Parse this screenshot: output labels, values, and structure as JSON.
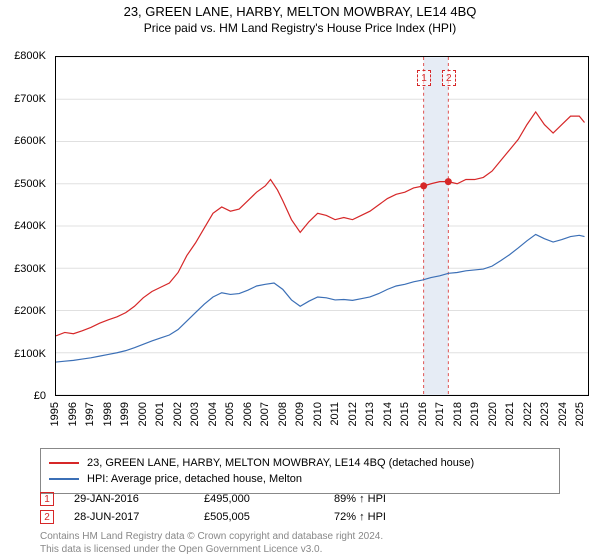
{
  "title": "23, GREEN LANE, HARBY, MELTON MOWBRAY, LE14 4BQ",
  "subtitle": "Price paid vs. HM Land Registry's House Price Index (HPI)",
  "chart": {
    "type": "line",
    "background_color": "#ffffff",
    "grid_color": "#e0e0e0",
    "axis_color": "#000000",
    "marker_band_color": "#e6ecf5",
    "ylim": [
      0,
      800000
    ],
    "ytick_step": 100000,
    "yticks": [
      "£0",
      "£100K",
      "£200K",
      "£300K",
      "£400K",
      "£500K",
      "£600K",
      "£700K",
      "£800K"
    ],
    "xlim": [
      1995,
      2025.5
    ],
    "xticks": [
      1995,
      1996,
      1997,
      1998,
      1999,
      2000,
      2001,
      2002,
      2003,
      2004,
      2005,
      2006,
      2007,
      2008,
      2009,
      2010,
      2011,
      2012,
      2013,
      2014,
      2015,
      2016,
      2017,
      2018,
      2019,
      2020,
      2021,
      2022,
      2023,
      2024,
      2025
    ],
    "label_fontsize": 11,
    "title_fontsize": 13,
    "line_width": 1.2,
    "series": [
      {
        "name": "property",
        "label": "23, GREEN LANE, HARBY, MELTON MOWBRAY, LE14 4BQ (detached house)",
        "color": "#d62728",
        "data": [
          [
            1995.0,
            140000
          ],
          [
            1995.5,
            148000
          ],
          [
            1996.0,
            145000
          ],
          [
            1996.5,
            152000
          ],
          [
            1997.0,
            160000
          ],
          [
            1997.5,
            170000
          ],
          [
            1998.0,
            178000
          ],
          [
            1998.5,
            185000
          ],
          [
            1999.0,
            195000
          ],
          [
            1999.5,
            210000
          ],
          [
            2000.0,
            230000
          ],
          [
            2000.5,
            245000
          ],
          [
            2001.0,
            255000
          ],
          [
            2001.5,
            265000
          ],
          [
            2002.0,
            290000
          ],
          [
            2002.5,
            330000
          ],
          [
            2003.0,
            360000
          ],
          [
            2003.5,
            395000
          ],
          [
            2004.0,
            430000
          ],
          [
            2004.5,
            445000
          ],
          [
            2005.0,
            435000
          ],
          [
            2005.5,
            440000
          ],
          [
            2006.0,
            460000
          ],
          [
            2006.5,
            480000
          ],
          [
            2007.0,
            495000
          ],
          [
            2007.3,
            510000
          ],
          [
            2007.7,
            485000
          ],
          [
            2008.0,
            460000
          ],
          [
            2008.5,
            415000
          ],
          [
            2009.0,
            385000
          ],
          [
            2009.5,
            410000
          ],
          [
            2010.0,
            430000
          ],
          [
            2010.5,
            425000
          ],
          [
            2011.0,
            415000
          ],
          [
            2011.5,
            420000
          ],
          [
            2012.0,
            415000
          ],
          [
            2012.5,
            425000
          ],
          [
            2013.0,
            435000
          ],
          [
            2013.5,
            450000
          ],
          [
            2014.0,
            465000
          ],
          [
            2014.5,
            475000
          ],
          [
            2015.0,
            480000
          ],
          [
            2015.5,
            490000
          ],
          [
            2016.08,
            495000
          ],
          [
            2016.5,
            500000
          ],
          [
            2017.0,
            505000
          ],
          [
            2017.49,
            505000
          ],
          [
            2018.0,
            500000
          ],
          [
            2018.5,
            510000
          ],
          [
            2019.0,
            510000
          ],
          [
            2019.5,
            515000
          ],
          [
            2020.0,
            530000
          ],
          [
            2020.5,
            555000
          ],
          [
            2021.0,
            580000
          ],
          [
            2021.5,
            605000
          ],
          [
            2022.0,
            640000
          ],
          [
            2022.5,
            670000
          ],
          [
            2023.0,
            640000
          ],
          [
            2023.5,
            620000
          ],
          [
            2024.0,
            640000
          ],
          [
            2024.5,
            660000
          ],
          [
            2025.0,
            660000
          ],
          [
            2025.3,
            645000
          ]
        ]
      },
      {
        "name": "hpi",
        "label": "HPI: Average price, detached house, Melton",
        "color": "#3b6fb6",
        "data": [
          [
            1995.0,
            78000
          ],
          [
            1995.5,
            80000
          ],
          [
            1996.0,
            82000
          ],
          [
            1996.5,
            85000
          ],
          [
            1997.0,
            88000
          ],
          [
            1997.5,
            92000
          ],
          [
            1998.0,
            96000
          ],
          [
            1998.5,
            100000
          ],
          [
            1999.0,
            105000
          ],
          [
            1999.5,
            112000
          ],
          [
            2000.0,
            120000
          ],
          [
            2000.5,
            128000
          ],
          [
            2001.0,
            135000
          ],
          [
            2001.5,
            142000
          ],
          [
            2002.0,
            155000
          ],
          [
            2002.5,
            175000
          ],
          [
            2003.0,
            195000
          ],
          [
            2003.5,
            215000
          ],
          [
            2004.0,
            232000
          ],
          [
            2004.5,
            242000
          ],
          [
            2005.0,
            238000
          ],
          [
            2005.5,
            240000
          ],
          [
            2006.0,
            248000
          ],
          [
            2006.5,
            258000
          ],
          [
            2007.0,
            262000
          ],
          [
            2007.5,
            265000
          ],
          [
            2008.0,
            250000
          ],
          [
            2008.5,
            225000
          ],
          [
            2009.0,
            210000
          ],
          [
            2009.5,
            222000
          ],
          [
            2010.0,
            232000
          ],
          [
            2010.5,
            230000
          ],
          [
            2011.0,
            225000
          ],
          [
            2011.5,
            226000
          ],
          [
            2012.0,
            224000
          ],
          [
            2012.5,
            228000
          ],
          [
            2013.0,
            232000
          ],
          [
            2013.5,
            240000
          ],
          [
            2014.0,
            250000
          ],
          [
            2014.5,
            258000
          ],
          [
            2015.0,
            262000
          ],
          [
            2015.5,
            268000
          ],
          [
            2016.0,
            272000
          ],
          [
            2016.5,
            278000
          ],
          [
            2017.0,
            282000
          ],
          [
            2017.5,
            288000
          ],
          [
            2018.0,
            290000
          ],
          [
            2018.5,
            294000
          ],
          [
            2019.0,
            296000
          ],
          [
            2019.5,
            298000
          ],
          [
            2020.0,
            305000
          ],
          [
            2020.5,
            318000
          ],
          [
            2021.0,
            332000
          ],
          [
            2021.5,
            348000
          ],
          [
            2022.0,
            365000
          ],
          [
            2022.5,
            380000
          ],
          [
            2023.0,
            370000
          ],
          [
            2023.5,
            362000
          ],
          [
            2024.0,
            368000
          ],
          [
            2024.5,
            375000
          ],
          [
            2025.0,
            378000
          ],
          [
            2025.3,
            375000
          ]
        ]
      }
    ],
    "sale_points": [
      {
        "n": 1,
        "x": 2016.08,
        "y": 495000,
        "color": "#d62728"
      },
      {
        "n": 2,
        "x": 2017.49,
        "y": 505005,
        "color": "#d62728"
      }
    ]
  },
  "legend": {
    "items": [
      {
        "color": "#d62728",
        "label": "23, GREEN LANE, HARBY, MELTON MOWBRAY, LE14 4BQ (detached house)"
      },
      {
        "color": "#3b6fb6",
        "label": "HPI: Average price, detached house, Melton"
      }
    ]
  },
  "sales": [
    {
      "n": "1",
      "date": "29-JAN-2016",
      "price": "£495,000",
      "delta": "89% ↑ HPI",
      "color": "#d62728"
    },
    {
      "n": "2",
      "date": "28-JUN-2017",
      "price": "£505,005",
      "delta": "72% ↑ HPI",
      "color": "#d62728"
    }
  ],
  "footer": {
    "l1": "Contains HM Land Registry data © Crown copyright and database right 2024.",
    "l2": "This data is licensed under the Open Government Licence v3.0."
  }
}
